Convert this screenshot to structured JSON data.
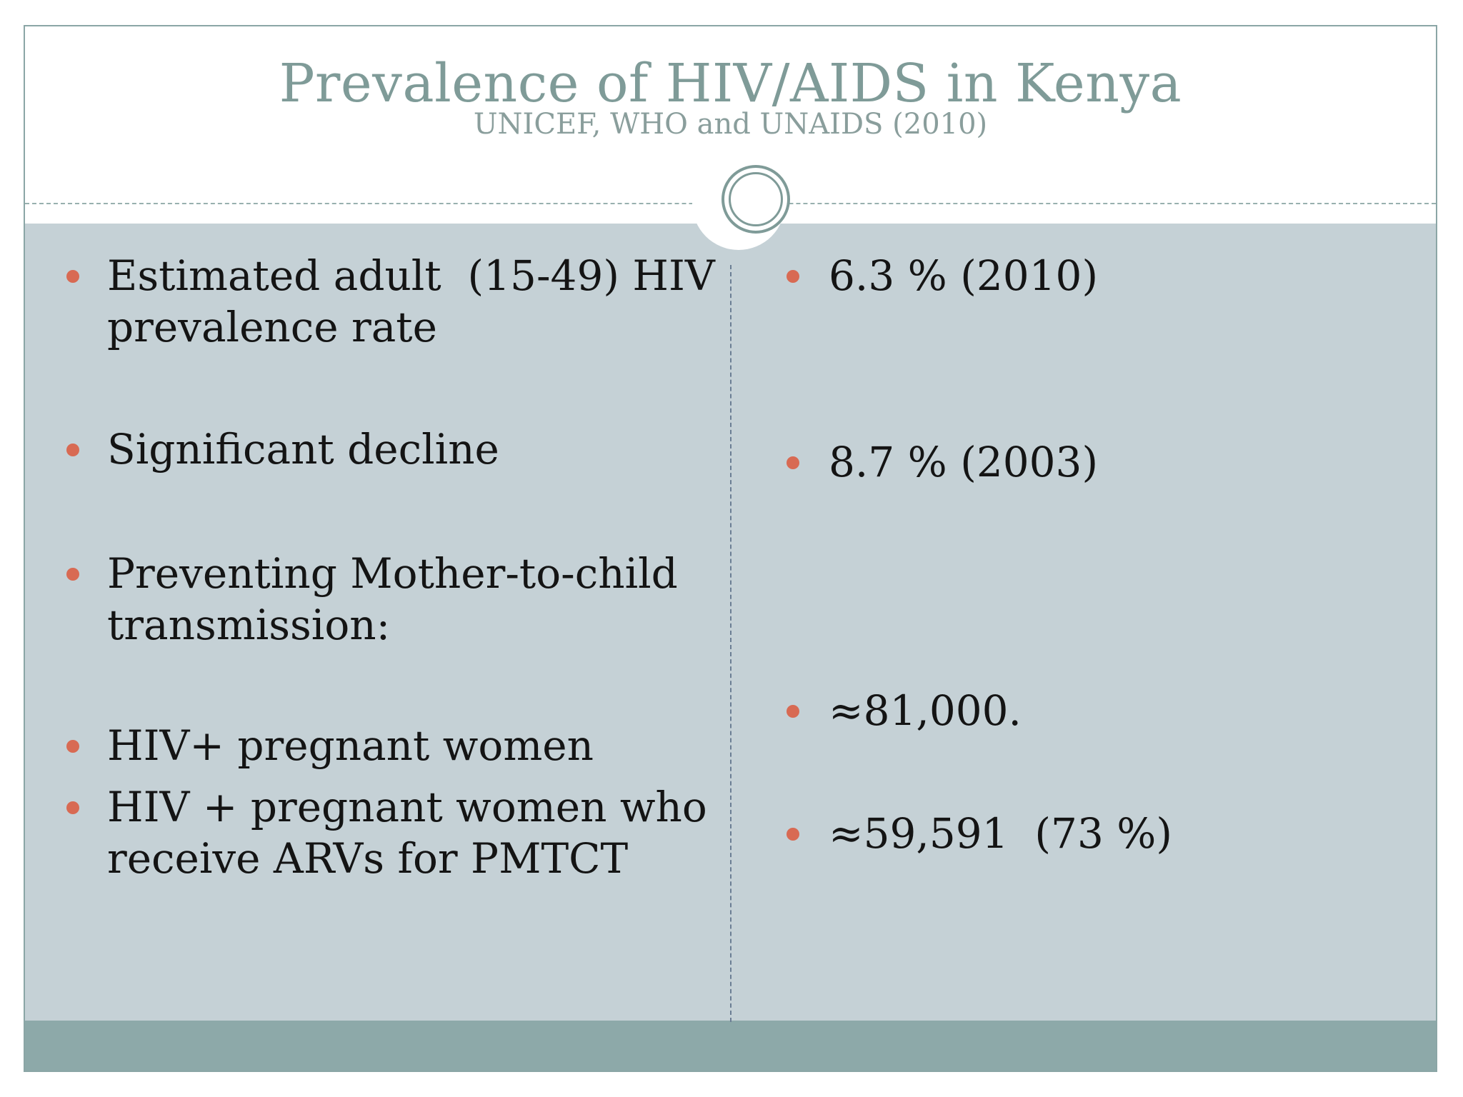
{
  "slide": {
    "title": "Prevalence of HIV/AIDS in Kenya",
    "subtitle": "UNICEF, WHO and UNAIDS (2010)"
  },
  "left_column": {
    "items": [
      {
        "text": "Estimated adult  (15-49) HIV prevalence rate"
      },
      {
        "text": "Significant decline"
      },
      {
        "text": "Preventing Mother-to-child transmission:"
      },
      {
        "text": "HIV+ pregnant women"
      },
      {
        "text": "HIV + pregnant women who receive ARVs for PMTCT"
      }
    ]
  },
  "right_column": {
    "items": [
      {
        "text": "6.3 % (2010)"
      },
      {
        "text": "8.7 % (2003)"
      },
      {
        "text": "≈81,000."
      },
      {
        "text": "≈59,591  (73 %)"
      }
    ]
  },
  "colors": {
    "title": "#7f9b98",
    "body_panel": "#c5d1d6",
    "footer_bar": "#8da9a9",
    "bullet": "#d86a53",
    "border": "#8ba6a6"
  }
}
